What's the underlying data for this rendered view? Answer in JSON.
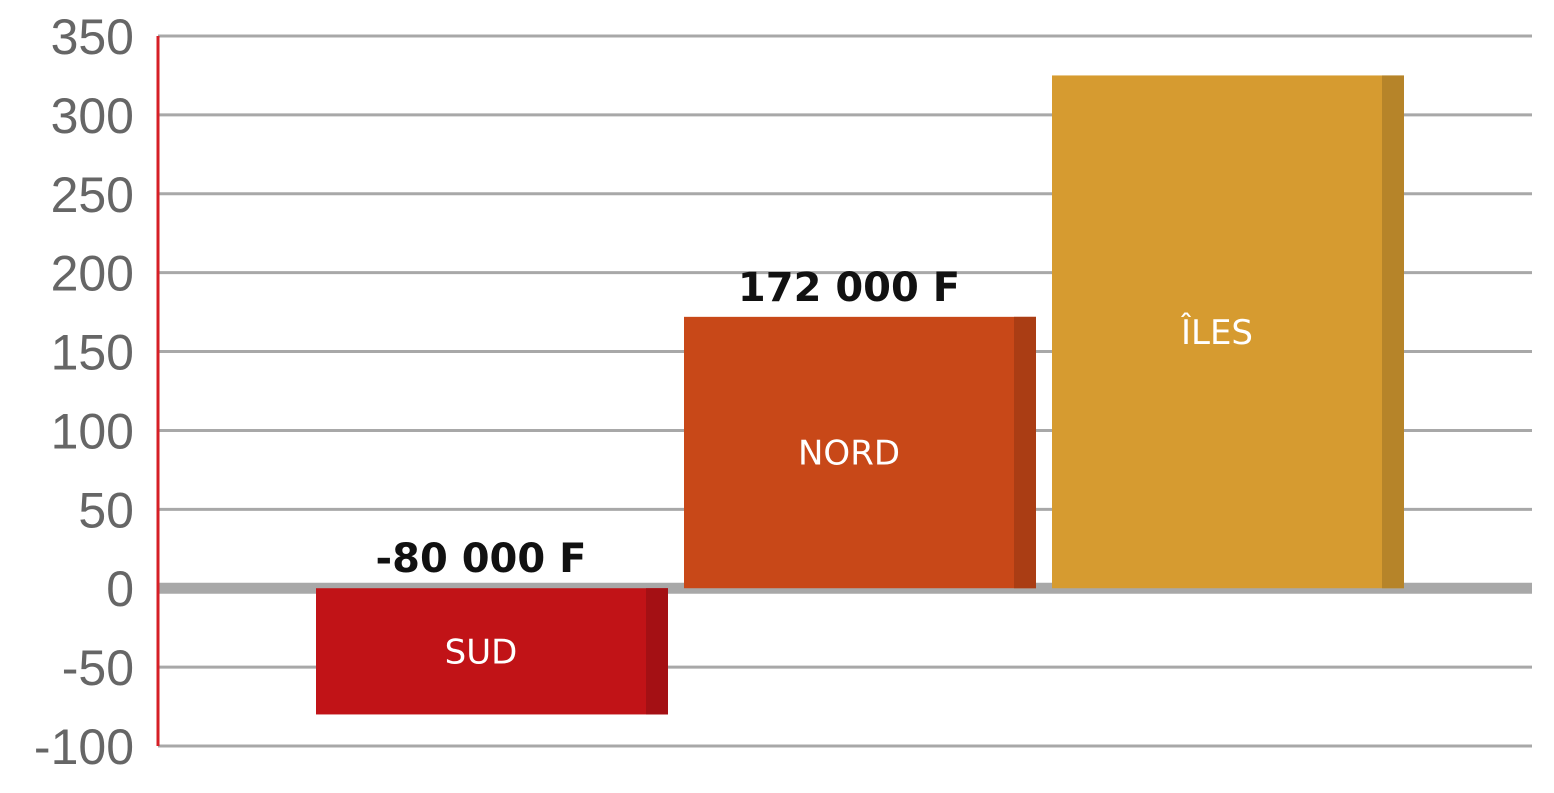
{
  "chart_data": {
    "type": "bar",
    "categories": [
      "SUD",
      "NORD",
      "ÎLES"
    ],
    "values": [
      -80,
      172,
      325
    ],
    "value_labels": [
      "-80 000 F",
      "172 000 F",
      ""
    ],
    "colors": [
      "#c11317",
      "#c84818",
      "#d69b30"
    ],
    "ylim": [
      -100,
      350
    ],
    "yticks": [
      350,
      300,
      250,
      200,
      150,
      100,
      50,
      0,
      -50,
      -100
    ],
    "grid": true,
    "axis_color": "#d61f26",
    "grid_color": "#a8a8a8",
    "title": "",
    "xlabel": "",
    "ylabel": ""
  }
}
